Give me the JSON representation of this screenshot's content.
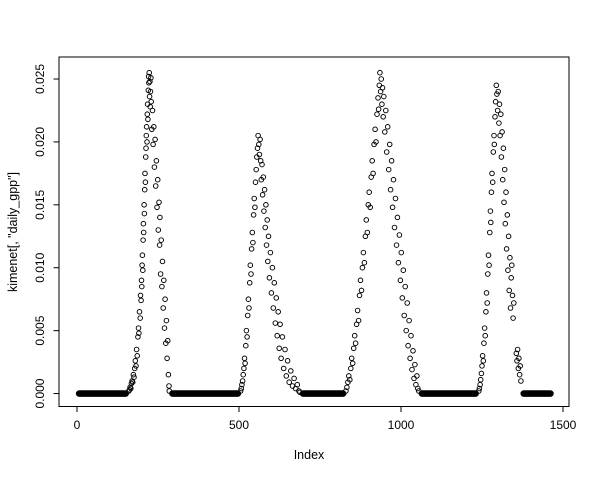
{
  "figure": {
    "background": "#ffffff",
    "axis_color": "#000000",
    "point_color": "#000000",
    "marker": "open-circle"
  },
  "chart_data": {
    "type": "scatter",
    "title": "",
    "xlabel": "Index",
    "ylabel": "kimenet[, \"daily_gpp\"]",
    "x_ticks": [
      0,
      500,
      1000,
      1500
    ],
    "x_tick_labels": [
      "0",
      "500",
      "1000",
      "1500"
    ],
    "y_ticks": [
      0.0,
      0.005,
      0.01,
      0.015,
      0.02,
      0.025
    ],
    "y_tick_labels": [
      "0.000",
      "0.005",
      "0.010",
      "0.015",
      "0.020",
      "0.025"
    ],
    "xlim": [
      -55.5,
      1518.5
    ],
    "ylim": [
      -0.00103,
      0.02675
    ],
    "grid": false,
    "legend": null,
    "zero_value": 0.0,
    "zero_runs": [
      [
        0,
        157
      ],
      [
        288,
        503
      ],
      [
        691,
        828
      ],
      [
        1058,
        1237
      ],
      [
        1372,
        1468
      ]
    ],
    "points": [
      [
        160,
        0.0002
      ],
      [
        162,
        0.0003
      ],
      [
        164,
        0.0005
      ],
      [
        166,
        0.0004
      ],
      [
        168,
        0.0008
      ],
      [
        170,
        0.001
      ],
      [
        172,
        0.0009
      ],
      [
        174,
        0.0015
      ],
      [
        176,
        0.0013
      ],
      [
        178,
        0.002
      ],
      [
        180,
        0.0026
      ],
      [
        182,
        0.0022
      ],
      [
        184,
        0.0035
      ],
      [
        186,
        0.003
      ],
      [
        188,
        0.0045
      ],
      [
        190,
        0.0052
      ],
      [
        191,
        0.0048
      ],
      [
        193,
        0.0065
      ],
      [
        195,
        0.006
      ],
      [
        196,
        0.0078
      ],
      [
        198,
        0.0074
      ],
      [
        199,
        0.009
      ],
      [
        200,
        0.0085
      ],
      [
        201,
        0.0102
      ],
      [
        202,
        0.011
      ],
      [
        203,
        0.0098
      ],
      [
        204,
        0.0122
      ],
      [
        205,
        0.0135
      ],
      [
        206,
        0.0128
      ],
      [
        207,
        0.015
      ],
      [
        208,
        0.0143
      ],
      [
        209,
        0.0162
      ],
      [
        210,
        0.0175
      ],
      [
        211,
        0.0168
      ],
      [
        212,
        0.0188
      ],
      [
        213,
        0.0195
      ],
      [
        214,
        0.0205
      ],
      [
        215,
        0.0212
      ],
      [
        216,
        0.02
      ],
      [
        217,
        0.0222
      ],
      [
        218,
        0.023
      ],
      [
        219,
        0.0218
      ],
      [
        220,
        0.0241
      ],
      [
        221,
        0.0252
      ],
      [
        222,
        0.0247
      ],
      [
        223,
        0.0255
      ],
      [
        224,
        0.0236
      ],
      [
        225,
        0.0248
      ],
      [
        226,
        0.0228
      ],
      [
        227,
        0.024
      ],
      [
        228,
        0.0251
      ],
      [
        229,
        0.0232
      ],
      [
        231,
        0.021
      ],
      [
        233,
        0.0225
      ],
      [
        235,
        0.0198
      ],
      [
        237,
        0.0212
      ],
      [
        239,
        0.018
      ],
      [
        241,
        0.0202
      ],
      [
        243,
        0.0165
      ],
      [
        245,
        0.0185
      ],
      [
        247,
        0.0148
      ],
      [
        249,
        0.017
      ],
      [
        251,
        0.013
      ],
      [
        253,
        0.0152
      ],
      [
        255,
        0.0118
      ],
      [
        256,
        0.014
      ],
      [
        258,
        0.0095
      ],
      [
        260,
        0.0122
      ],
      [
        262,
        0.0085
      ],
      [
        264,
        0.0105
      ],
      [
        266,
        0.0068
      ],
      [
        268,
        0.009
      ],
      [
        270,
        0.0052
      ],
      [
        272,
        0.0075
      ],
      [
        274,
        0.004
      ],
      [
        276,
        0.0058
      ],
      [
        278,
        0.0028
      ],
      [
        280,
        0.0042
      ],
      [
        282,
        0.0015
      ],
      [
        284,
        0.0006
      ],
      [
        285,
        0.0002
      ],
      [
        505,
        0.0002
      ],
      [
        507,
        0.0004
      ],
      [
        509,
        0.0007
      ],
      [
        511,
        0.001
      ],
      [
        513,
        0.0015
      ],
      [
        515,
        0.002
      ],
      [
        517,
        0.0028
      ],
      [
        519,
        0.0024
      ],
      [
        521,
        0.0038
      ],
      [
        523,
        0.005
      ],
      [
        525,
        0.0045
      ],
      [
        527,
        0.0062
      ],
      [
        529,
        0.0075
      ],
      [
        531,
        0.0068
      ],
      [
        533,
        0.0088
      ],
      [
        535,
        0.0102
      ],
      [
        537,
        0.0095
      ],
      [
        539,
        0.0115
      ],
      [
        541,
        0.0128
      ],
      [
        543,
        0.012
      ],
      [
        545,
        0.0142
      ],
      [
        547,
        0.0155
      ],
      [
        549,
        0.0148
      ],
      [
        551,
        0.0168
      ],
      [
        553,
        0.0178
      ],
      [
        555,
        0.0188
      ],
      [
        557,
        0.0195
      ],
      [
        559,
        0.0205
      ],
      [
        561,
        0.0198
      ],
      [
        563,
        0.019
      ],
      [
        565,
        0.0202
      ],
      [
        567,
        0.0185
      ],
      [
        569,
        0.017
      ],
      [
        571,
        0.0182
      ],
      [
        573,
        0.0158
      ],
      [
        575,
        0.0172
      ],
      [
        577,
        0.0145
      ],
      [
        579,
        0.0162
      ],
      [
        581,
        0.0132
      ],
      [
        583,
        0.015
      ],
      [
        585,
        0.0118
      ],
      [
        587,
        0.0138
      ],
      [
        589,
        0.0105
      ],
      [
        591,
        0.0125
      ],
      [
        594,
        0.0092
      ],
      [
        597,
        0.0112
      ],
      [
        600,
        0.008
      ],
      [
        603,
        0.01
      ],
      [
        606,
        0.0068
      ],
      [
        609,
        0.0088
      ],
      [
        612,
        0.0056
      ],
      [
        615,
        0.0076
      ],
      [
        618,
        0.0046
      ],
      [
        621,
        0.0065
      ],
      [
        624,
        0.0036
      ],
      [
        627,
        0.0055
      ],
      [
        630,
        0.0028
      ],
      [
        634,
        0.0045
      ],
      [
        638,
        0.002
      ],
      [
        642,
        0.0035
      ],
      [
        646,
        0.0014
      ],
      [
        650,
        0.0026
      ],
      [
        655,
        0.0009
      ],
      [
        660,
        0.0018
      ],
      [
        665,
        0.0006
      ],
      [
        670,
        0.0012
      ],
      [
        675,
        0.0004
      ],
      [
        680,
        0.0007
      ],
      [
        685,
        0.0002
      ],
      [
        688,
        0.0001
      ],
      [
        830,
        0.0002
      ],
      [
        833,
        0.0005
      ],
      [
        836,
        0.0009
      ],
      [
        839,
        0.0014
      ],
      [
        842,
        0.0011
      ],
      [
        845,
        0.002
      ],
      [
        848,
        0.0028
      ],
      [
        851,
        0.0024
      ],
      [
        854,
        0.0036
      ],
      [
        857,
        0.0046
      ],
      [
        860,
        0.004
      ],
      [
        863,
        0.0055
      ],
      [
        866,
        0.0066
      ],
      [
        869,
        0.0058
      ],
      [
        872,
        0.0078
      ],
      [
        875,
        0.009
      ],
      [
        878,
        0.0082
      ],
      [
        881,
        0.01
      ],
      [
        884,
        0.0112
      ],
      [
        887,
        0.0104
      ],
      [
        890,
        0.0125
      ],
      [
        893,
        0.0138
      ],
      [
        896,
        0.0128
      ],
      [
        899,
        0.015
      ],
      [
        902,
        0.016
      ],
      [
        905,
        0.0148
      ],
      [
        908,
        0.0172
      ],
      [
        911,
        0.0185
      ],
      [
        914,
        0.0175
      ],
      [
        917,
        0.0198
      ],
      [
        920,
        0.021
      ],
      [
        923,
        0.02
      ],
      [
        926,
        0.0222
      ],
      [
        929,
        0.0235
      ],
      [
        931,
        0.0226
      ],
      [
        933,
        0.0245
      ],
      [
        935,
        0.0255
      ],
      [
        937,
        0.024
      ],
      [
        939,
        0.025
      ],
      [
        941,
        0.023
      ],
      [
        943,
        0.0243
      ],
      [
        945,
        0.022
      ],
      [
        947,
        0.0236
      ],
      [
        950,
        0.0208
      ],
      [
        953,
        0.0225
      ],
      [
        956,
        0.0192
      ],
      [
        959,
        0.0212
      ],
      [
        962,
        0.0178
      ],
      [
        965,
        0.0198
      ],
      [
        968,
        0.0162
      ],
      [
        971,
        0.0185
      ],
      [
        974,
        0.0148
      ],
      [
        977,
        0.017
      ],
      [
        980,
        0.0132
      ],
      [
        983,
        0.0155
      ],
      [
        986,
        0.0118
      ],
      [
        989,
        0.014
      ],
      [
        992,
        0.0104
      ],
      [
        995,
        0.0126
      ],
      [
        998,
        0.009
      ],
      [
        1001,
        0.0112
      ],
      [
        1004,
        0.0076
      ],
      [
        1007,
        0.0098
      ],
      [
        1010,
        0.0062
      ],
      [
        1013,
        0.0085
      ],
      [
        1016,
        0.005
      ],
      [
        1019,
        0.0072
      ],
      [
        1022,
        0.0038
      ],
      [
        1025,
        0.0058
      ],
      [
        1028,
        0.0028
      ],
      [
        1031,
        0.0046
      ],
      [
        1034,
        0.0019
      ],
      [
        1037,
        0.0034
      ],
      [
        1040,
        0.0012
      ],
      [
        1043,
        0.0023
      ],
      [
        1046,
        0.0007
      ],
      [
        1049,
        0.0014
      ],
      [
        1052,
        0.0004
      ],
      [
        1055,
        0.0002
      ],
      [
        1240,
        0.0002
      ],
      [
        1242,
        0.0004
      ],
      [
        1244,
        0.0007
      ],
      [
        1246,
        0.0011
      ],
      [
        1248,
        0.0016
      ],
      [
        1250,
        0.0022
      ],
      [
        1252,
        0.003
      ],
      [
        1254,
        0.0026
      ],
      [
        1256,
        0.004
      ],
      [
        1258,
        0.0052
      ],
      [
        1260,
        0.0046
      ],
      [
        1262,
        0.0065
      ],
      [
        1264,
        0.008
      ],
      [
        1266,
        0.0072
      ],
      [
        1268,
        0.0095
      ],
      [
        1270,
        0.011
      ],
      [
        1272,
        0.0102
      ],
      [
        1274,
        0.0128
      ],
      [
        1276,
        0.0145
      ],
      [
        1277,
        0.0136
      ],
      [
        1279,
        0.016
      ],
      [
        1281,
        0.0175
      ],
      [
        1283,
        0.0168
      ],
      [
        1285,
        0.0192
      ],
      [
        1287,
        0.0205
      ],
      [
        1288,
        0.0198
      ],
      [
        1290,
        0.022
      ],
      [
        1292,
        0.0232
      ],
      [
        1294,
        0.0245
      ],
      [
        1296,
        0.0238
      ],
      [
        1298,
        0.0225
      ],
      [
        1300,
        0.024
      ],
      [
        1302,
        0.0215
      ],
      [
        1304,
        0.023
      ],
      [
        1306,
        0.0205
      ],
      [
        1308,
        0.0222
      ],
      [
        1310,
        0.0188
      ],
      [
        1312,
        0.0208
      ],
      [
        1314,
        0.017
      ],
      [
        1316,
        0.0195
      ],
      [
        1318,
        0.0152
      ],
      [
        1320,
        0.0178
      ],
      [
        1322,
        0.0135
      ],
      [
        1324,
        0.016
      ],
      [
        1326,
        0.0115
      ],
      [
        1328,
        0.0142
      ],
      [
        1330,
        0.0098
      ],
      [
        1332,
        0.0125
      ],
      [
        1334,
        0.0082
      ],
      [
        1336,
        0.0108
      ],
      [
        1338,
        0.0068
      ],
      [
        1340,
        0.0092
      ],
      [
        1342,
        0.0102
      ],
      [
        1344,
        0.0078
      ],
      [
        1346,
        0.006
      ],
      [
        1348,
        0.0072
      ],
      [
        1356,
        0.0032
      ],
      [
        1358,
        0.0026
      ],
      [
        1360,
        0.0035
      ],
      [
        1362,
        0.002
      ],
      [
        1364,
        0.0028
      ],
      [
        1366,
        0.0015
      ],
      [
        1368,
        0.0022
      ],
      [
        1370,
        0.001
      ]
    ]
  }
}
